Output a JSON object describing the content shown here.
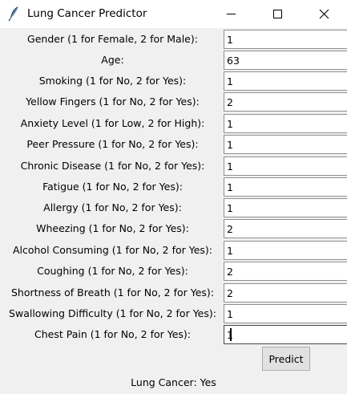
{
  "window": {
    "title": "Lung Cancer Predictor",
    "icon": "feather-icon",
    "controls": [
      "minimize-icon",
      "maximize-icon",
      "close-icon"
    ]
  },
  "form": {
    "fields": [
      {
        "label": "Gender (1 for Female, 2 for Male):",
        "value": "1"
      },
      {
        "label": "Age:",
        "value": "63"
      },
      {
        "label": "Smoking (1 for No, 2 for Yes):",
        "value": "1"
      },
      {
        "label": "Yellow Fingers (1 for No, 2 for Yes):",
        "value": "2"
      },
      {
        "label": "Anxiety Level (1 for Low, 2 for High):",
        "value": "1"
      },
      {
        "label": "Peer Pressure (1 for No, 2 for Yes):",
        "value": "1"
      },
      {
        "label": "Chronic Disease (1 for No, 2 for Yes):",
        "value": "1"
      },
      {
        "label": "Fatigue (1 for No, 2 for Yes):",
        "value": "1"
      },
      {
        "label": "Allergy (1 for No, 2 for Yes):",
        "value": "1"
      },
      {
        "label": "Wheezing (1 for No, 2 for Yes):",
        "value": "2"
      },
      {
        "label": "Alcohol Consuming (1 for No, 2 for Yes):",
        "value": "1"
      },
      {
        "label": "Coughing (1 for No, 2 for Yes):",
        "value": "2"
      },
      {
        "label": "Shortness of Breath (1 for No, 2 for Yes):",
        "value": "2"
      },
      {
        "label": "Swallowing Difficulty (1 for No, 2 for Yes):",
        "value": "1"
      },
      {
        "label": "Chest Pain (1 for No, 2 for Yes):",
        "value": "1"
      }
    ],
    "predict_label": "Predict",
    "result": "Lung Cancer: Yes"
  }
}
